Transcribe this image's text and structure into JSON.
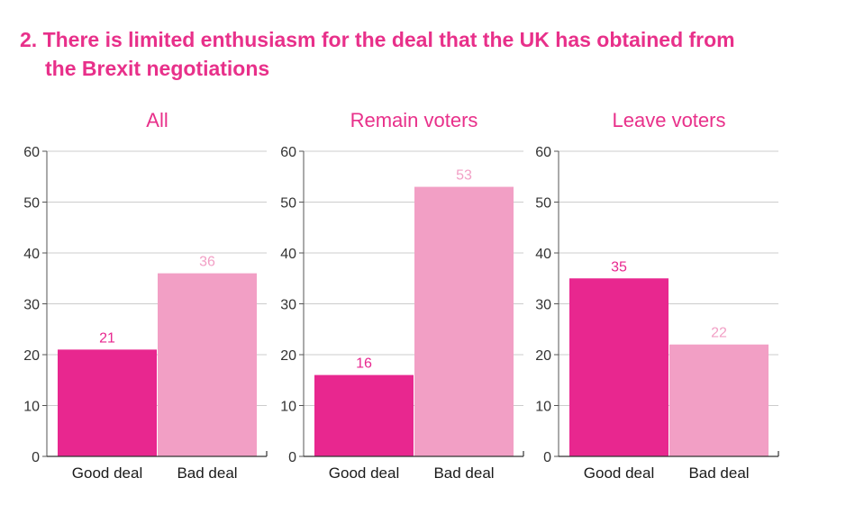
{
  "title_line1": "2. There is limited enthusiasm for the deal that the UK has obtained from",
  "title_line2": "the Brexit negotiations",
  "colors": {
    "good": "#e8278f",
    "bad": "#f29fc5",
    "title": "#e8308a",
    "grid": "#cccccc"
  },
  "chart_data": [
    {
      "type": "bar",
      "title": "All",
      "categories": [
        "Good deal",
        "Bad deal"
      ],
      "values": [
        21,
        36
      ],
      "ylim": [
        0,
        60
      ],
      "yticks": [
        0,
        10,
        20,
        30,
        40,
        50,
        60
      ],
      "grid": true
    },
    {
      "type": "bar",
      "title": "Remain voters",
      "categories": [
        "Good deal",
        "Bad deal"
      ],
      "values": [
        16,
        53
      ],
      "ylim": [
        0,
        60
      ],
      "yticks": [
        0,
        10,
        20,
        30,
        40,
        50,
        60
      ],
      "grid": true
    },
    {
      "type": "bar",
      "title": "Leave voters",
      "categories": [
        "Good deal",
        "Bad deal"
      ],
      "values": [
        35,
        22
      ],
      "ylim": [
        0,
        60
      ],
      "yticks": [
        0,
        10,
        20,
        30,
        40,
        50,
        60
      ],
      "grid": true
    }
  ]
}
